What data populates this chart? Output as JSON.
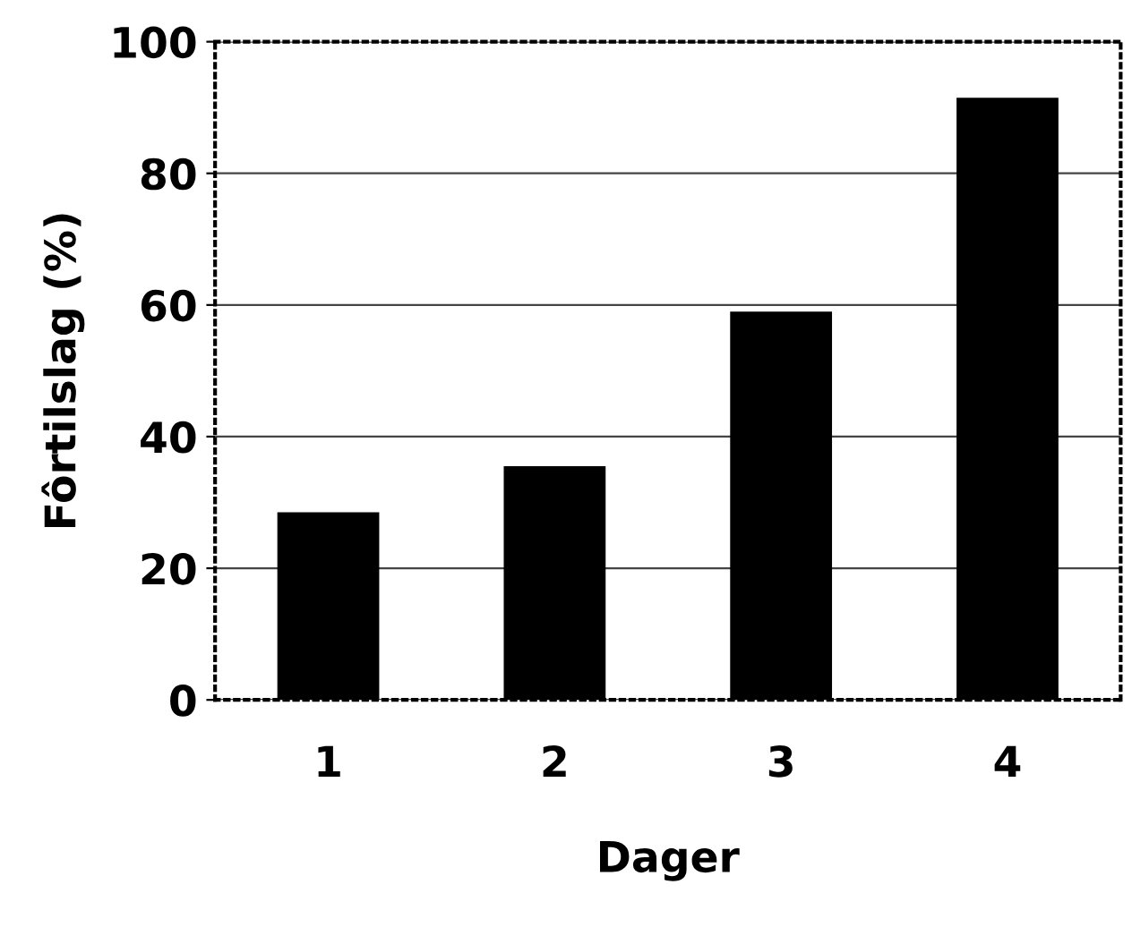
{
  "chart_data": {
    "type": "bar",
    "xlabel": "Dager",
    "ylabel": "Fôrtilslag (%)",
    "categories": [
      "1",
      "2",
      "3",
      "4"
    ],
    "values": [
      28.5,
      35.5,
      59,
      91.5
    ],
    "color": "#000000",
    "ylim": [
      0,
      100
    ],
    "yticks": [
      0,
      20,
      40,
      60,
      80,
      100
    ],
    "grid": "y"
  }
}
